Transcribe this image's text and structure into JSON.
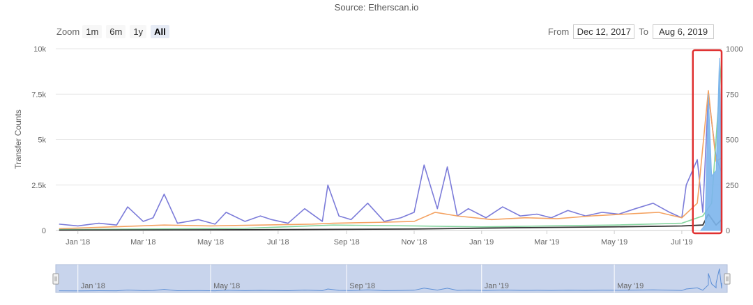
{
  "subtitle": "Source: Etherscan.io",
  "zoom": {
    "label": "Zoom",
    "buttons": [
      "1m",
      "6m",
      "1y",
      "All"
    ],
    "selected": "All"
  },
  "range": {
    "from_label": "From",
    "from_value": "Dec 12, 2017",
    "to_label": "To",
    "to_value": "Aug 6, 2019"
  },
  "colors": {
    "series_purple": "#7b7bd9",
    "series_orange": "#f4a261",
    "series_green": "#86d6a0",
    "series_black": "#333333",
    "series_blue_area": "#7cb5ec",
    "highlight": "#e03030",
    "navigator_fill": "#c8d4ec",
    "grid": "#e6e6e6"
  },
  "chart_data": {
    "type": "line",
    "ylabel": "Transfer Counts",
    "yticks_left": [
      "0",
      "2.5k",
      "5k",
      "7.5k",
      "10k"
    ],
    "yticks_right": [
      "0",
      "250",
      "500",
      "750",
      "1000"
    ],
    "ylim": [
      0,
      10000
    ],
    "ylim_right": [
      0,
      1000
    ],
    "xlim": [
      "2017-12-12",
      "2019-08-06"
    ],
    "xticks": [
      "Jan '18",
      "Mar '18",
      "May '18",
      "Jul '18",
      "Sep '18",
      "Nov '18",
      "Jan '19",
      "Mar '19",
      "May '19",
      "Jul '19"
    ],
    "navigator_ticks": [
      "Jan '18",
      "May '18",
      "Sep '18",
      "Jan '19",
      "May '19"
    ],
    "grid": true,
    "highlight_range": [
      "2019-07-11",
      "2019-08-06"
    ],
    "series": [
      {
        "color": "purple",
        "x": [
          "2017-12-15",
          "2018-01-01",
          "2018-01-20",
          "2018-02-05",
          "2018-02-15",
          "2018-03-01",
          "2018-03-10",
          "2018-03-20",
          "2018-04-01",
          "2018-04-20",
          "2018-05-05",
          "2018-05-15",
          "2018-06-01",
          "2018-06-15",
          "2018-06-25",
          "2018-07-10",
          "2018-07-25",
          "2018-08-10",
          "2018-08-15",
          "2018-08-25",
          "2018-09-05",
          "2018-09-20",
          "2018-10-05",
          "2018-10-20",
          "2018-11-01",
          "2018-11-10",
          "2018-11-22",
          "2018-12-01",
          "2018-12-10",
          "2018-12-20",
          "2019-01-05",
          "2019-01-20",
          "2019-02-05",
          "2019-02-20",
          "2019-03-05",
          "2019-03-20",
          "2019-04-05",
          "2019-04-20",
          "2019-05-05",
          "2019-05-20",
          "2019-06-05",
          "2019-06-20",
          "2019-07-01",
          "2019-07-05",
          "2019-07-15",
          "2019-07-20",
          "2019-07-25",
          "2019-08-01",
          "2019-08-06"
        ],
        "values": [
          350,
          250,
          400,
          300,
          1300,
          500,
          700,
          2000,
          400,
          600,
          350,
          1000,
          500,
          800,
          600,
          400,
          1200,
          500,
          2500,
          800,
          600,
          1500,
          500,
          700,
          1000,
          3600,
          1200,
          3500,
          800,
          1200,
          700,
          1300,
          800,
          900,
          700,
          1100,
          800,
          1000,
          900,
          1200,
          1500,
          1000,
          700,
          2500,
          3900,
          1000,
          7500,
          4000,
          3200
        ]
      },
      {
        "color": "orange",
        "x": [
          "2017-12-15",
          "2018-02-01",
          "2018-03-20",
          "2018-05-01",
          "2018-06-15",
          "2018-08-01",
          "2018-08-20",
          "2018-10-01",
          "2018-11-01",
          "2018-11-20",
          "2018-12-10",
          "2019-01-10",
          "2019-02-10",
          "2019-03-10",
          "2019-04-10",
          "2019-05-10",
          "2019-06-10",
          "2019-07-01",
          "2019-07-15",
          "2019-07-25",
          "2019-08-01",
          "2019-08-06"
        ],
        "values": [
          100,
          200,
          300,
          250,
          300,
          350,
          400,
          450,
          500,
          1000,
          800,
          600,
          700,
          650,
          800,
          900,
          1000,
          700,
          1500,
          7700,
          3800,
          4000
        ]
      },
      {
        "color": "green",
        "x": [
          "2017-12-15",
          "2018-03-01",
          "2018-06-01",
          "2018-08-20",
          "2018-11-01",
          "2019-01-01",
          "2019-03-01",
          "2019-05-01",
          "2019-07-01",
          "2019-07-20",
          "2019-07-28",
          "2019-08-06"
        ],
        "values": [
          50,
          80,
          120,
          300,
          250,
          200,
          250,
          300,
          400,
          800,
          1500,
          9500
        ]
      },
      {
        "color": "black",
        "x": [
          "2017-12-15",
          "2018-06-01",
          "2018-11-01",
          "2019-02-01",
          "2019-05-01",
          "2019-07-01",
          "2019-07-20",
          "2019-07-25",
          "2019-08-01",
          "2019-08-06"
        ],
        "values": [
          20,
          40,
          80,
          150,
          200,
          250,
          300,
          900,
          300,
          600
        ]
      },
      {
        "color": "blue_area",
        "x": [
          "2019-07-18",
          "2019-07-22",
          "2019-07-25",
          "2019-07-28",
          "2019-08-01",
          "2019-08-04",
          "2019-08-06"
        ],
        "values": [
          0,
          300,
          7500,
          3000,
          3300,
          9500,
          3500
        ]
      }
    ]
  }
}
